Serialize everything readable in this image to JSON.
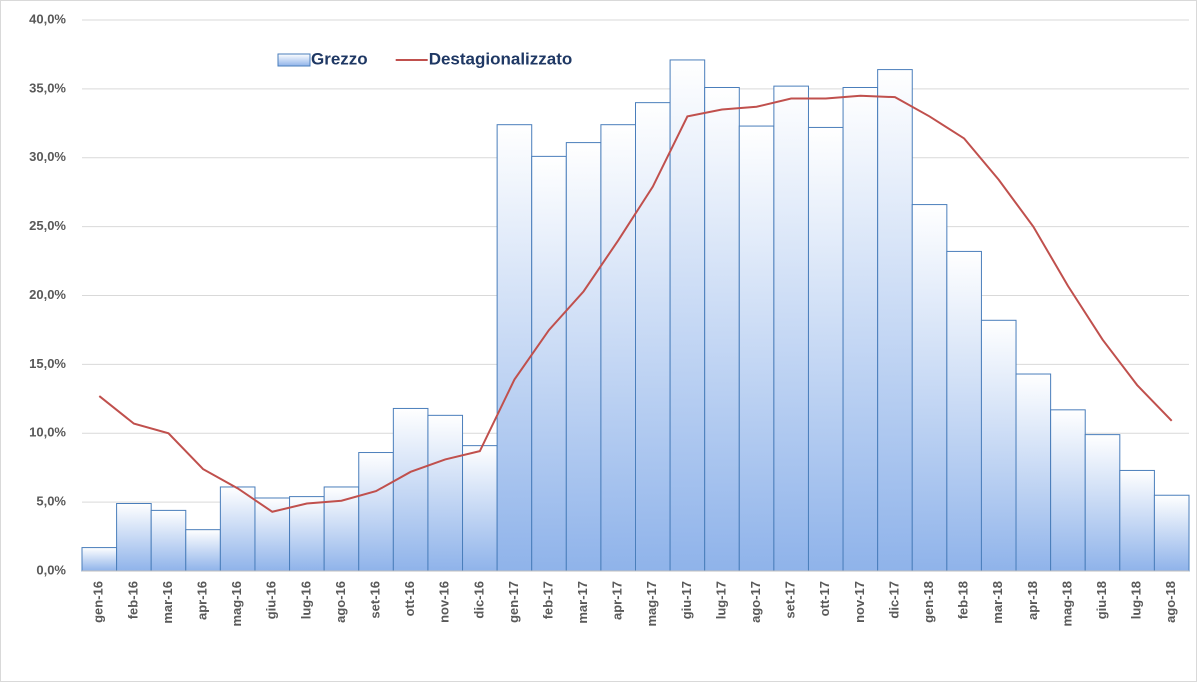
{
  "chart_data": {
    "type": "bar",
    "categories": [
      "gen-16",
      "feb-16",
      "mar-16",
      "apr-16",
      "mag-16",
      "giu-16",
      "lug-16",
      "ago-16",
      "set-16",
      "ott-16",
      "nov-16",
      "dic-16",
      "gen-17",
      "feb-17",
      "mar-17",
      "apr-17",
      "mag-17",
      "giu-17",
      "lug-17",
      "ago-17",
      "set-17",
      "ott-17",
      "nov-17",
      "dic-17",
      "gen-18",
      "feb-18",
      "mar-18",
      "apr-18",
      "mag-18",
      "giu-18",
      "lug-18",
      "ago-18"
    ],
    "series": [
      {
        "name": "Grezzo",
        "type": "bar",
        "color": "#8fb3ea",
        "values": [
          1.7,
          4.9,
          4.4,
          3.0,
          6.1,
          5.3,
          5.4,
          6.1,
          8.6,
          11.8,
          11.3,
          9.1,
          32.4,
          30.1,
          31.1,
          32.4,
          34.0,
          37.1,
          35.1,
          32.3,
          35.2,
          32.2,
          35.1,
          36.4,
          26.6,
          23.2,
          18.2,
          14.3,
          11.7,
          9.9,
          7.3,
          5.5
        ]
      },
      {
        "name": "Destagionalizzato",
        "type": "line",
        "color": "#c0504d",
        "values": [
          12.7,
          10.7,
          10.0,
          7.4,
          6.0,
          4.3,
          4.9,
          5.1,
          5.8,
          7.2,
          8.1,
          8.7,
          13.9,
          17.5,
          20.3,
          24.0,
          27.9,
          33.0,
          33.5,
          33.7,
          34.3,
          34.3,
          34.5,
          34.4,
          33.0,
          31.4,
          28.4,
          25.0,
          20.7,
          16.8,
          13.5,
          10.9
        ]
      }
    ],
    "ylim": [
      0,
      40
    ],
    "yticks": [
      {
        "value": 0,
        "label": "0,0%"
      },
      {
        "value": 5,
        "label": "5,0%"
      },
      {
        "value": 10,
        "label": "10,0%"
      },
      {
        "value": 15,
        "label": "15,0%"
      },
      {
        "value": 20,
        "label": "20,0%"
      },
      {
        "value": 25,
        "label": "25,0%"
      },
      {
        "value": 30,
        "label": "30,0%"
      },
      {
        "value": 35,
        "label": "35,0%"
      },
      {
        "value": 40,
        "label": "40,0%"
      }
    ],
    "grid": true
  }
}
